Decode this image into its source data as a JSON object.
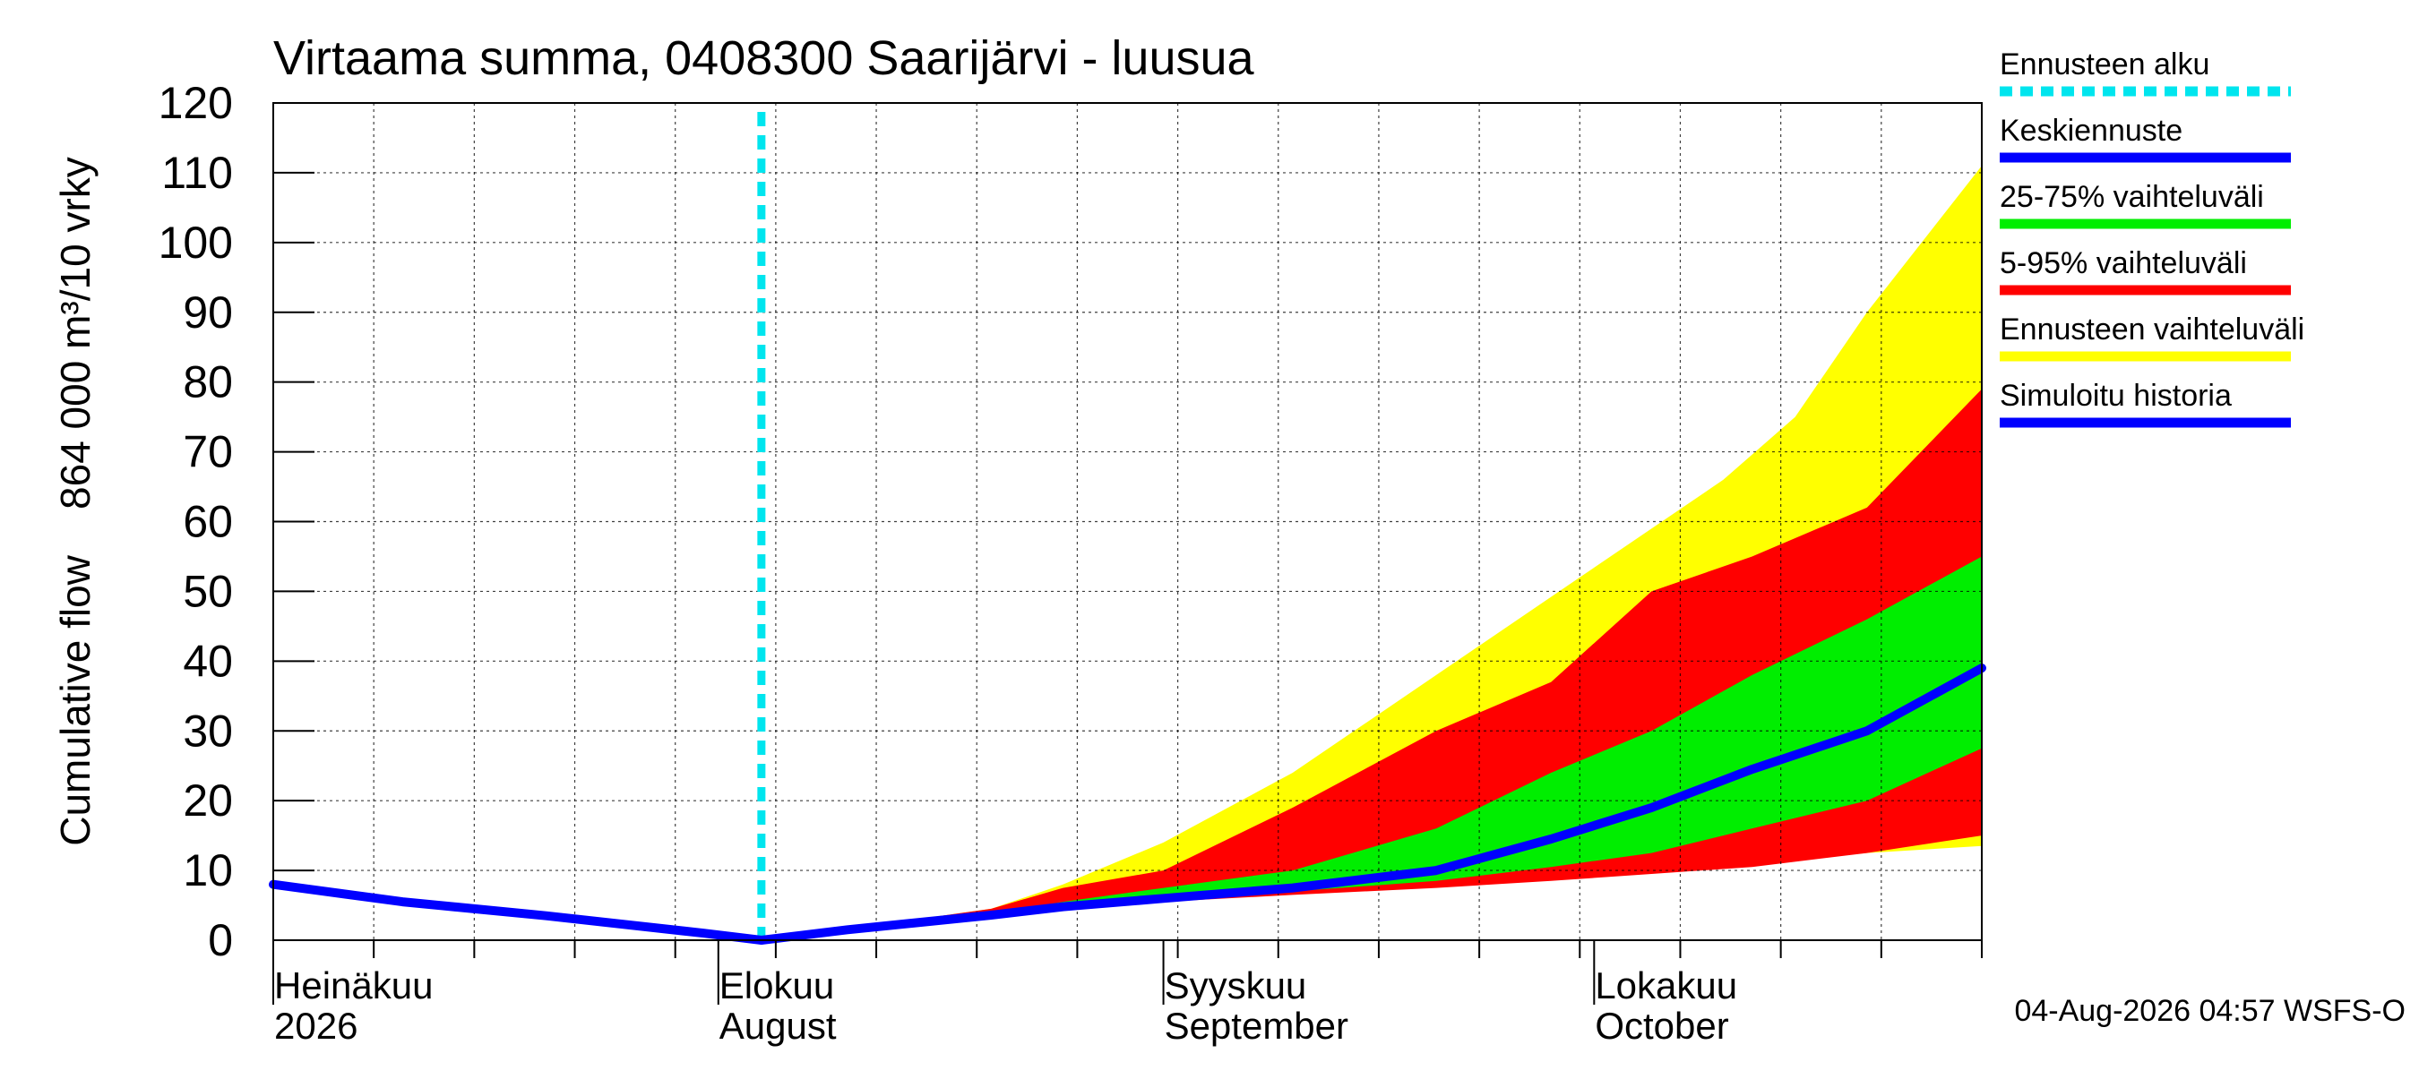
{
  "chart_data": {
    "type": "area",
    "title": "Virtaama summa, 0408300 Saarijärvi - luusua",
    "ylabel": "Cumulative flow    864 000 m³/10 vrky",
    "xlabel": "",
    "ylim": [
      0,
      120
    ],
    "y_ticks": [
      0,
      10,
      20,
      30,
      40,
      50,
      60,
      70,
      80,
      90,
      100,
      110,
      120
    ],
    "x_domain": [
      "2026-07-01",
      "2026-10-28"
    ],
    "grid": true,
    "legend_position": "right",
    "month_labels": [
      {
        "date": "2026-07-01",
        "line1": "Heinäkuu",
        "line2": "2026"
      },
      {
        "date": "2026-08-01",
        "line1": "Elokuu",
        "line2": "August"
      },
      {
        "date": "2026-09-01",
        "line1": "Syyskuu",
        "line2": "September"
      },
      {
        "date": "2026-10-01",
        "line1": "Lokakuu",
        "line2": "October"
      }
    ],
    "forecast_start": "2026-08-04",
    "series": [
      {
        "name": "Ennusteen vaihteluväli",
        "color": "#ffff00",
        "kind": "band",
        "x": [
          "2026-08-04",
          "2026-08-10",
          "2026-08-20",
          "2026-08-25",
          "2026-09-01",
          "2026-09-10",
          "2026-09-20",
          "2026-09-30",
          "2026-10-10",
          "2026-10-15",
          "2026-10-20",
          "2026-10-28"
        ],
        "lower": [
          0,
          1.5,
          3.5,
          4.5,
          5.5,
          7.0,
          8.0,
          9.0,
          10.5,
          11.5,
          12.5,
          13.5
        ],
        "upper": [
          0,
          1.6,
          4.5,
          8.0,
          14.0,
          24.0,
          38.0,
          52.0,
          66.0,
          75.0,
          90.0,
          111.0
        ]
      },
      {
        "name": "5-95% vaihteluväli",
        "color": "#ff0000",
        "kind": "band",
        "x": [
          "2026-08-04",
          "2026-08-10",
          "2026-08-20",
          "2026-08-25",
          "2026-09-01",
          "2026-09-10",
          "2026-09-20",
          "2026-09-28",
          "2026-10-05",
          "2026-10-12",
          "2026-10-20",
          "2026-10-28"
        ],
        "lower": [
          0,
          1.5,
          3.5,
          4.5,
          5.5,
          6.5,
          7.5,
          8.5,
          9.5,
          10.5,
          12.5,
          15.0
        ],
        "upper": [
          0,
          1.6,
          4.5,
          7.5,
          10.0,
          19.0,
          30.0,
          37.0,
          50.0,
          55.0,
          62.0,
          79.0
        ]
      },
      {
        "name": "25-75% vaihteluväli",
        "color": "#00ee00",
        "kind": "band",
        "x": [
          "2026-08-04",
          "2026-08-10",
          "2026-08-20",
          "2026-08-25",
          "2026-09-01",
          "2026-09-10",
          "2026-09-20",
          "2026-09-28",
          "2026-10-05",
          "2026-10-12",
          "2026-10-20",
          "2026-10-28"
        ],
        "lower": [
          0,
          1.5,
          3.5,
          4.5,
          5.5,
          7.0,
          8.5,
          10.5,
          12.5,
          16.0,
          20.0,
          27.5
        ],
        "upper": [
          0,
          1.6,
          3.8,
          5.5,
          7.5,
          10.0,
          16.0,
          24.0,
          30.0,
          38.0,
          46.0,
          55.0
        ]
      },
      {
        "name": "Keskiennuste",
        "color": "#0000ff",
        "kind": "line",
        "x": [
          "2026-08-04",
          "2026-08-10",
          "2026-08-20",
          "2026-08-25",
          "2026-09-01",
          "2026-09-10",
          "2026-09-20",
          "2026-09-28",
          "2026-10-05",
          "2026-10-12",
          "2026-10-20",
          "2026-10-28"
        ],
        "y": [
          0,
          1.5,
          3.6,
          4.8,
          6.0,
          7.5,
          10.0,
          14.5,
          19.0,
          24.5,
          30.0,
          39.0
        ]
      },
      {
        "name": "Simuloitu historia",
        "color": "#0000ff",
        "kind": "line",
        "x": [
          "2026-07-01",
          "2026-07-10",
          "2026-07-20",
          "2026-07-31",
          "2026-08-04"
        ],
        "y": [
          8.0,
          5.5,
          3.5,
          1.0,
          0.0
        ]
      }
    ],
    "legend": [
      {
        "label": "Ennusteen alku",
        "color": "#00e5ee",
        "style": "dashed"
      },
      {
        "label": "Keskiennuste",
        "color": "#0000ff",
        "style": "solid"
      },
      {
        "label": "25-75% vaihteluväli",
        "color": "#00ee00",
        "style": "solid"
      },
      {
        "label": "5-95% vaihteluväli",
        "color": "#ff0000",
        "style": "solid"
      },
      {
        "label": "Ennusteen vaihteluväli",
        "color": "#ffff00",
        "style": "solid"
      },
      {
        "label": "Simuloitu historia",
        "color": "#0000ff",
        "style": "solid"
      }
    ],
    "footer": "04-Aug-2026 04:57 WSFS-O"
  }
}
